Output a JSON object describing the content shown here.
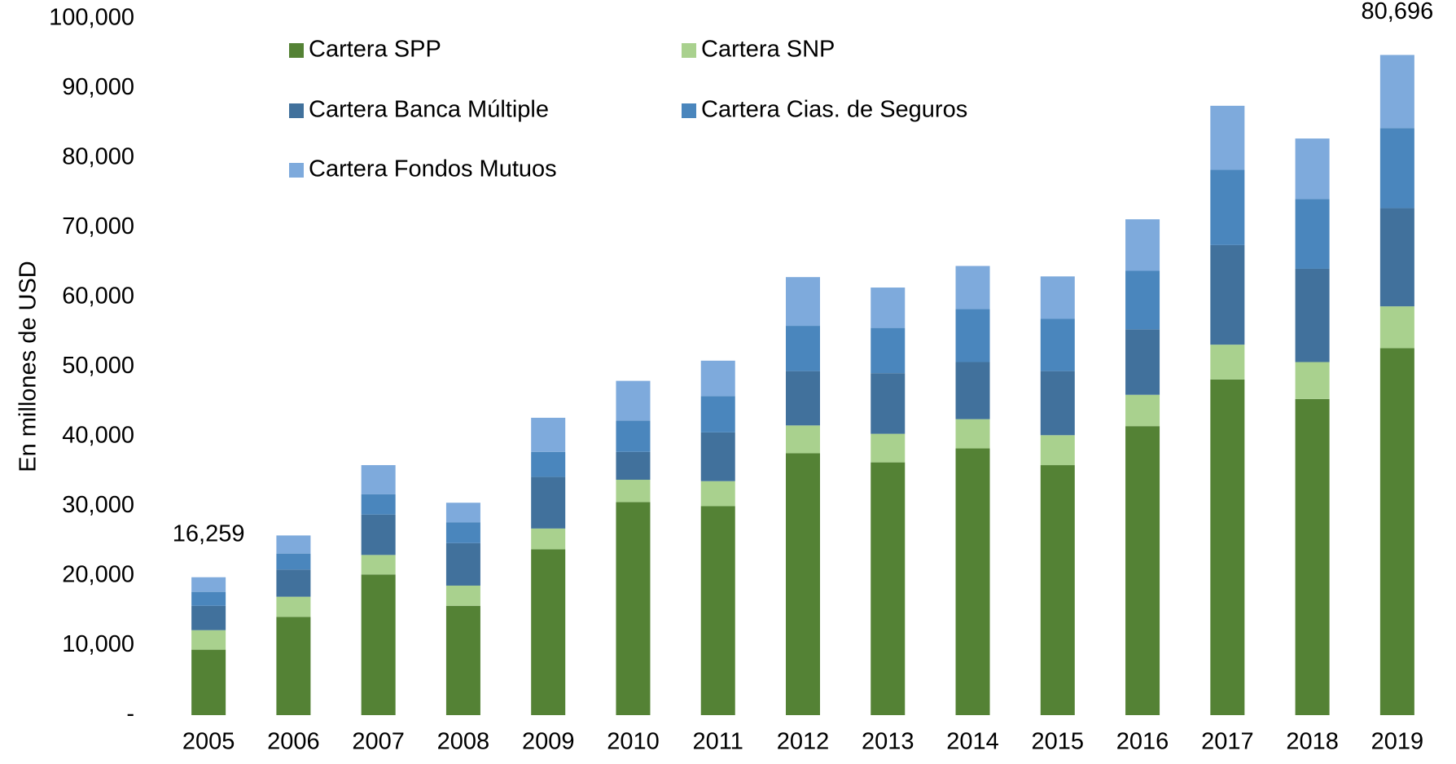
{
  "chart_data": {
    "type": "stacked_bar",
    "y_axis_label": "En millones de USD",
    "categories": [
      "2005",
      "2006",
      "2007",
      "2008",
      "2009",
      "2010",
      "2011",
      "2012",
      "2013",
      "2014",
      "2015",
      "2016",
      "2017",
      "2018",
      "2019"
    ],
    "series": [
      {
        "name": "Cartera SPP",
        "color": "#548235",
        "values": [
          9.4,
          14.1,
          20.2,
          15.7,
          23.8,
          30.6,
          30.0,
          37.6,
          36.3,
          38.3,
          35.9,
          41.5,
          48.2,
          45.4,
          52.7
        ]
      },
      {
        "name": "Cartera SNP",
        "color": "#a9d18e",
        "values": [
          2.8,
          2.9,
          2.8,
          2.9,
          3.0,
          3.2,
          3.6,
          4.0,
          4.1,
          4.2,
          4.3,
          4.5,
          5.0,
          5.3,
          6.0
        ]
      },
      {
        "name": "Cartera Banca Múltiple",
        "color": "#41719c",
        "values": [
          3.5,
          3.9,
          5.8,
          6.1,
          7.4,
          4.0,
          7.0,
          7.8,
          8.7,
          8.2,
          9.2,
          9.4,
          14.3,
          13.4,
          14.1
        ]
      },
      {
        "name": "Cartera Cias. de Seguros",
        "color": "#4a86bd",
        "values": [
          2.0,
          2.3,
          2.9,
          3.0,
          3.6,
          4.5,
          5.2,
          6.5,
          6.5,
          7.6,
          7.5,
          8.4,
          10.8,
          10.0,
          11.5
        ]
      },
      {
        "name": "Cartera Fondos Mutuos",
        "color": "#7eaadc",
        "values": [
          2.1,
          2.6,
          4.2,
          2.8,
          4.9,
          5.7,
          5.1,
          7.0,
          5.8,
          6.2,
          6.1,
          7.4,
          9.2,
          8.7,
          10.5
        ]
      }
    ],
    "value_scale": 1000,
    "ylim": [
      0,
      100000
    ],
    "yticks": [
      {
        "value": 0,
        "label": "-"
      },
      {
        "value": 10000,
        "label": "10,000"
      },
      {
        "value": 20000,
        "label": "20,000"
      },
      {
        "value": 30000,
        "label": "30,000"
      },
      {
        "value": 40000,
        "label": "40,000"
      },
      {
        "value": 50000,
        "label": "50,000"
      },
      {
        "value": 60000,
        "label": "60,000"
      },
      {
        "value": 70000,
        "label": "70,000"
      },
      {
        "value": 80000,
        "label": "80,000"
      },
      {
        "value": 90000,
        "label": "90,000"
      },
      {
        "value": 100000,
        "label": "100,000"
      }
    ],
    "annotations": [
      {
        "category": "2005",
        "text": "16,259"
      },
      {
        "category": "2019",
        "text": "80,696"
      }
    ],
    "grid": false
  }
}
